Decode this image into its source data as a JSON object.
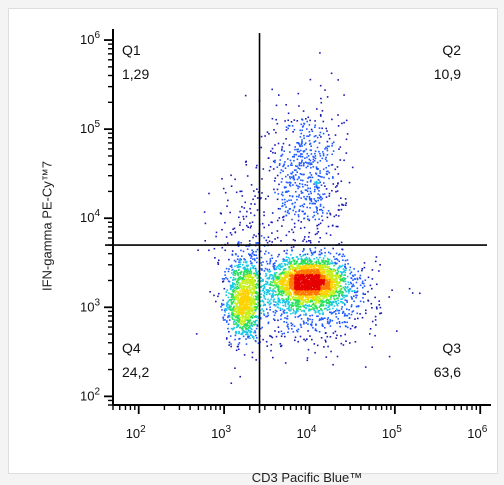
{
  "chart_data": {
    "type": "scatter",
    "subtype": "flow-cytometry-density-dot-plot",
    "xlabel": "CD3 Pacific Blue™",
    "ylabel": "IFN-gamma PE-Cy™7",
    "x_scale": "log",
    "y_scale": "log",
    "xlim": [
      50,
      1200000
    ],
    "ylim": [
      80,
      1200000
    ],
    "x_tick_labels": [
      {
        "base": "10",
        "exp": "2",
        "value": 100
      },
      {
        "base": "10",
        "exp": "3",
        "value": 1000
      },
      {
        "base": "10",
        "exp": "4",
        "value": 10000
      },
      {
        "base": "10",
        "exp": "5",
        "value": 100000
      },
      {
        "base": "10",
        "exp": "6",
        "value": 1000000
      }
    ],
    "y_tick_labels": [
      {
        "base": "10",
        "exp": "2",
        "value": 100
      },
      {
        "base": "10",
        "exp": "3",
        "value": 1000
      },
      {
        "base": "10",
        "exp": "4",
        "value": 10000
      },
      {
        "base": "10",
        "exp": "5",
        "value": 100000
      },
      {
        "base": "10",
        "exp": "6",
        "value": 1000000
      }
    ],
    "gate": {
      "x": 2600,
      "y": 5000
    },
    "quadrants": [
      {
        "name": "Q1",
        "value": "1,29",
        "position": "top-left"
      },
      {
        "name": "Q2",
        "value": "10,9",
        "position": "top-right"
      },
      {
        "name": "Q3",
        "value": "63,6",
        "position": "bottom-right"
      },
      {
        "name": "Q4",
        "value": "24,2",
        "position": "bottom-left"
      }
    ],
    "populations": [
      {
        "center": [
          1700,
          1200
        ],
        "spread": [
          0.1,
          0.22
        ],
        "share": 0.22
      },
      {
        "center": [
          9500,
          1950
        ],
        "spread": [
          0.22,
          0.13
        ],
        "share": 0.48
      },
      {
        "center": [
          11000,
          1200
        ],
        "spread": [
          0.38,
          0.25
        ],
        "share": 0.14
      },
      {
        "center": [
          9000,
          30000
        ],
        "spread": [
          0.22,
          0.42
        ],
        "share": 0.12
      },
      {
        "center": [
          1800,
          5500
        ],
        "spread": [
          0.2,
          0.4
        ],
        "share": 0.04
      }
    ],
    "colormap": [
      "#1a1ab3",
      "#1f5aff",
      "#19c8e6",
      "#27e05a",
      "#c8f01e",
      "#ffd200",
      "#ff7800",
      "#e60000"
    ],
    "grid": false,
    "legend": "none"
  }
}
